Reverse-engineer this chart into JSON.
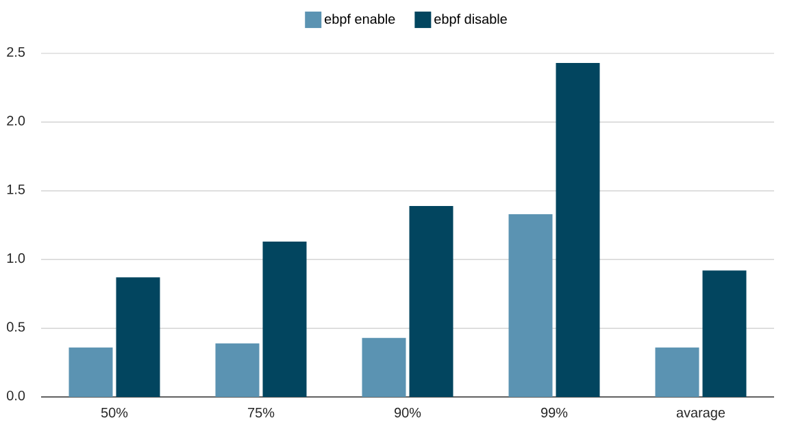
{
  "chart_data": {
    "type": "bar",
    "categories": [
      "50%",
      "75%",
      "90%",
      "99%",
      "avarage"
    ],
    "series": [
      {
        "name": "ebpf enable",
        "color": "#5b93b2",
        "values": [
          0.36,
          0.39,
          0.43,
          1.33,
          0.36
        ]
      },
      {
        "name": "ebpf disable",
        "color": "#02455f",
        "values": [
          0.87,
          1.13,
          1.39,
          2.43,
          0.92
        ]
      }
    ],
    "ylim": [
      0,
      2.5
    ],
    "yticks": [
      {
        "value": 0,
        "label": "0.0"
      },
      0.5,
      {
        "value": 1,
        "label": "1.0"
      },
      1.5,
      {
        "value": 2,
        "label": "2.0"
      },
      2.5
    ],
    "grid": "y",
    "legend": "top"
  }
}
